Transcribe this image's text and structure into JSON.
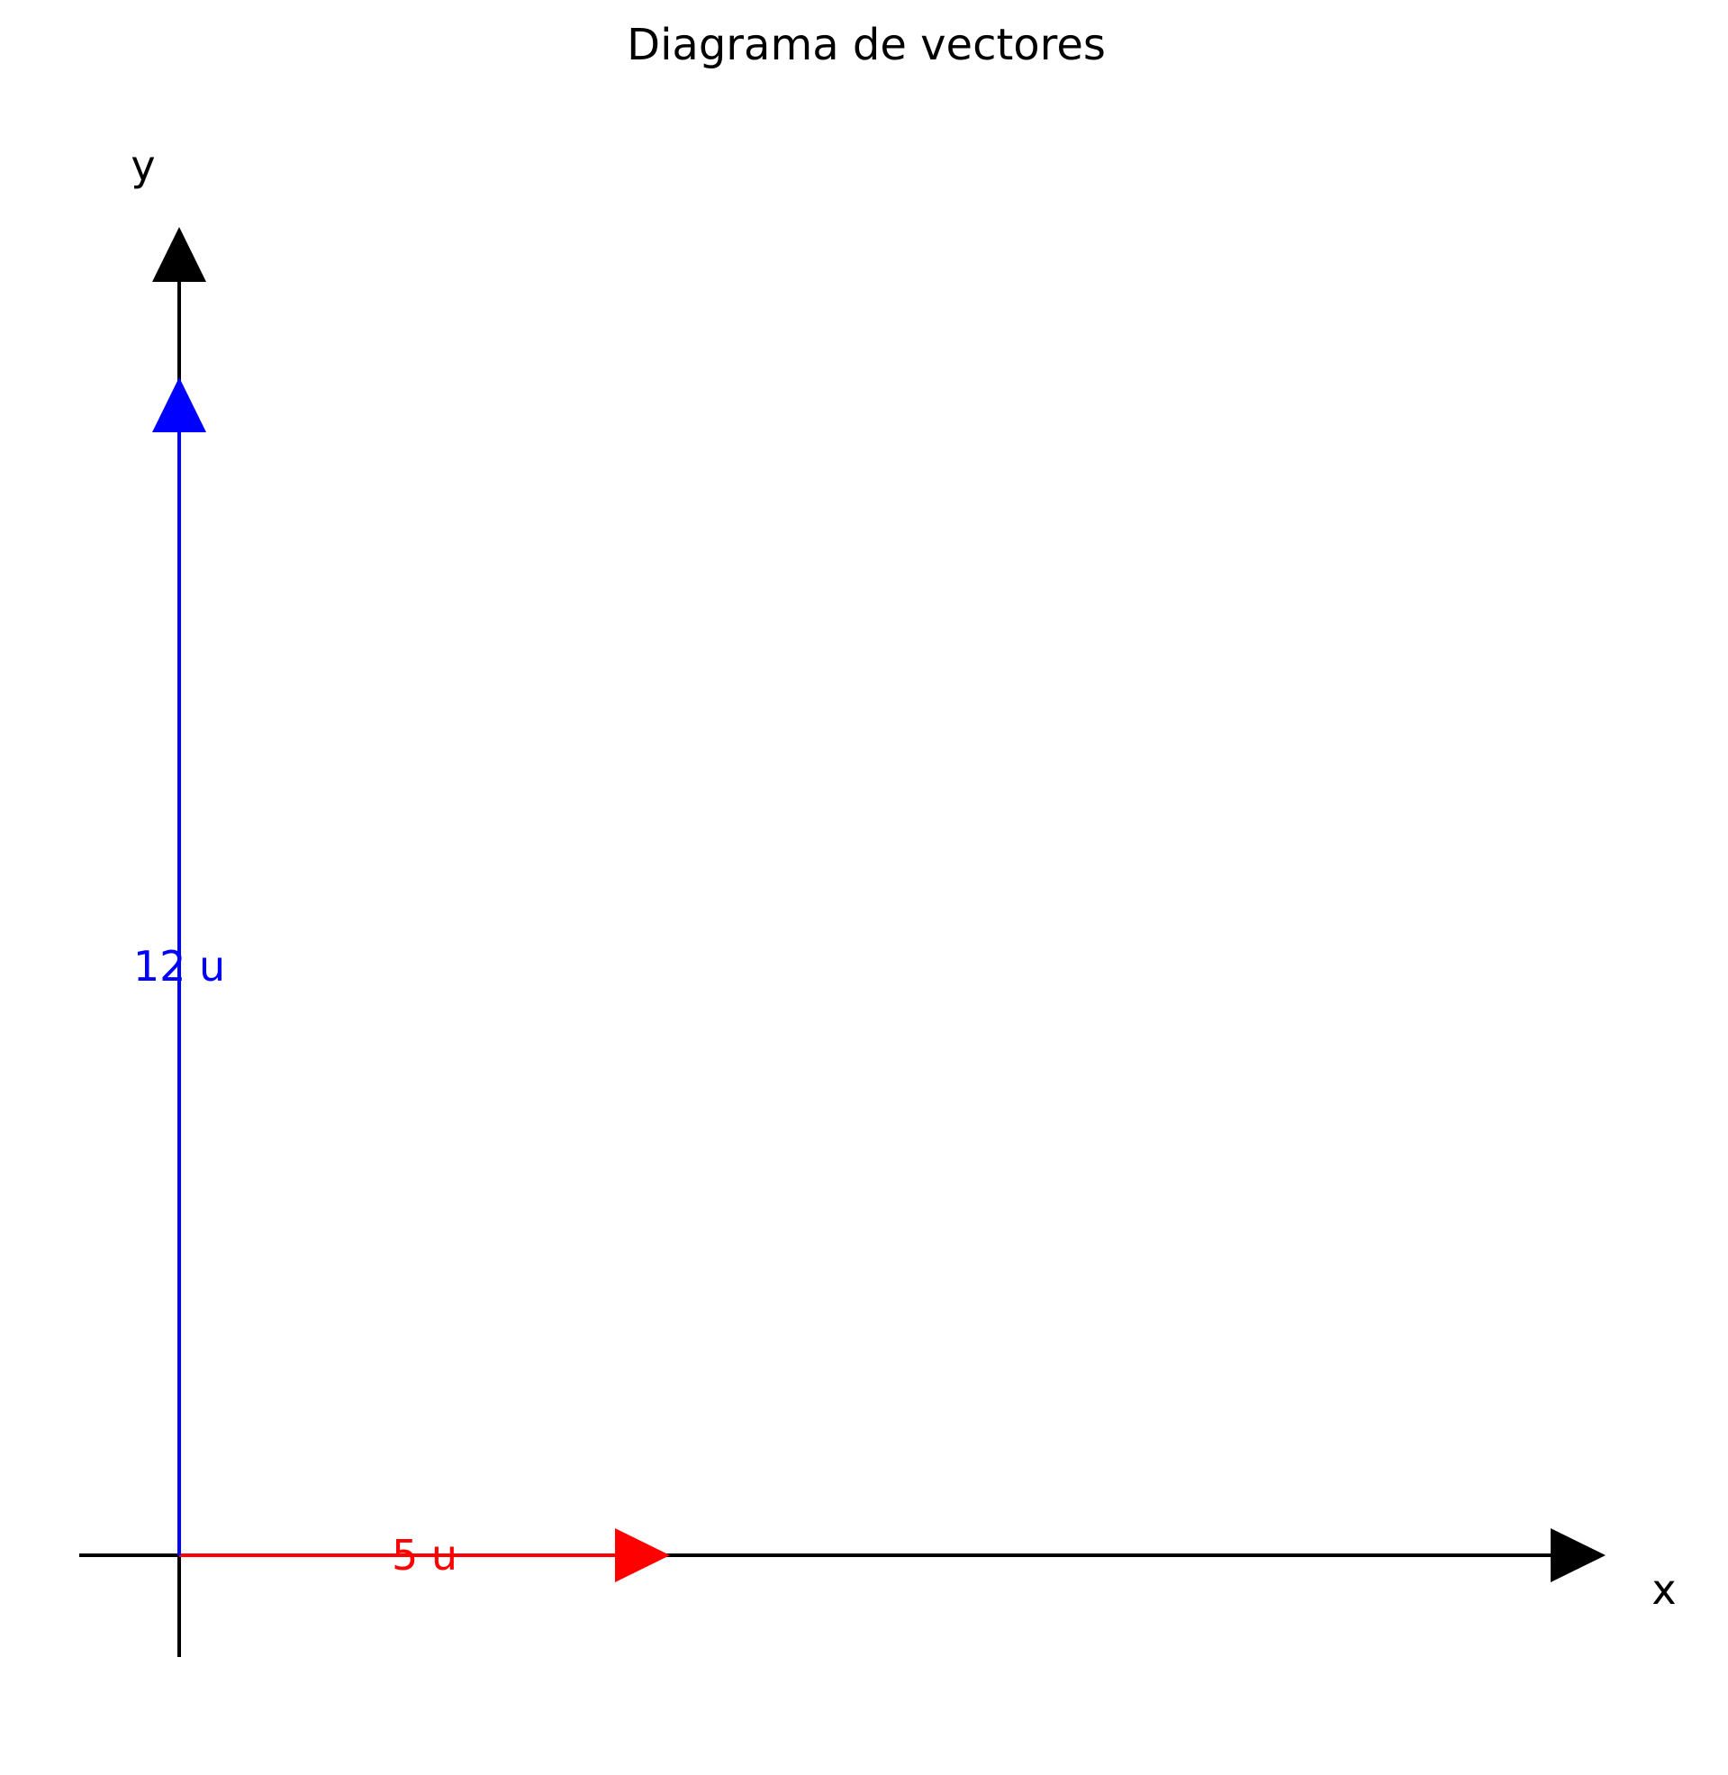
{
  "title": "Diagrama de vectores",
  "axes": {
    "x_label": "x",
    "y_label": "y",
    "color": "#000000"
  },
  "vectors": [
    {
      "id": "horizontal",
      "label": "5 u",
      "magnitude": 5,
      "direction": "x",
      "color": "#ff0000"
    },
    {
      "id": "vertical",
      "label": "12 u",
      "magnitude": 12,
      "direction": "y",
      "color": "#0000ff"
    }
  ]
}
